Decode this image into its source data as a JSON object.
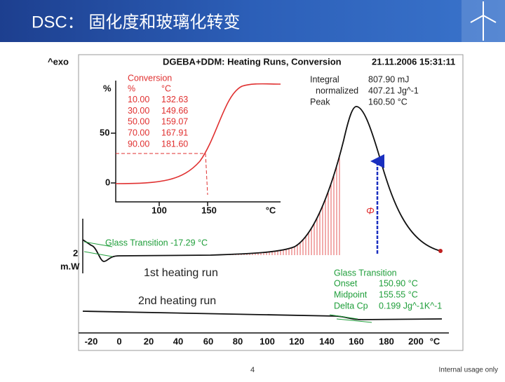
{
  "header": {
    "title": "DSC： 固化度和玻璃化转变"
  },
  "plot": {
    "y_unit": "^exo",
    "title": "DGEBA+DDM: Heating Runs, Conversion",
    "timestamp": "21.11.2006 15:31:11",
    "inset": {
      "y_unit": "%",
      "y_labels": [
        "50",
        "0"
      ],
      "x_labels": [
        "100",
        "150",
        "°C"
      ],
      "table_title": "Conversion",
      "table_rows": [
        [
          "%",
          "°C"
        ],
        [
          "10.00",
          "132.63"
        ],
        [
          "30.00",
          "149.66"
        ],
        [
          "50.00",
          "159.07"
        ],
        [
          "70.00",
          "167.91"
        ],
        [
          "90.00",
          "181.60"
        ]
      ]
    },
    "integral": [
      [
        "Integral",
        "807.90 mJ"
      ],
      [
        "normalized",
        "407.21 Jg^-1"
      ],
      [
        "Peak",
        "160.50 °C"
      ]
    ],
    "phi": "Φ",
    "scale_value": "2",
    "scale_unit": "m.W",
    "glass_transition_label": "Glass Transition -17.29 °C",
    "run1": "1st heating run",
    "run2": "2nd heating run",
    "glass_transition": {
      "title": "Glass Transition",
      "rows": [
        [
          "Onset",
          "150.90 °C"
        ],
        [
          "Midpoint",
          "155.55 °C"
        ],
        [
          "Delta Cp",
          "0.199 Jg^-1K^-1"
        ]
      ]
    },
    "x_labels": [
      "-20",
      "0",
      "20",
      "40",
      "60",
      "80",
      "100",
      "120",
      "140",
      "160",
      "180",
      "200",
      "°C"
    ]
  },
  "footer": {
    "page": "4",
    "note": "Internal usage only"
  }
}
